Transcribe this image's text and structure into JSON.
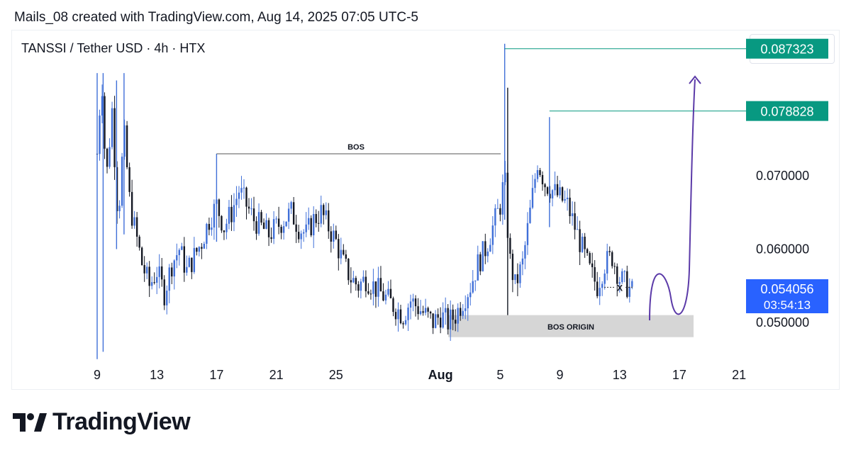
{
  "header": {
    "text": "Mails_08 created with TradingView.com, Aug 14, 2025 07:05 UTC-5"
  },
  "symbol": {
    "text": "TANSSI / Tether USD · 4h · HTX"
  },
  "currency": {
    "label": "USDT"
  },
  "brand": {
    "name": "TradingView"
  },
  "colors": {
    "up": "#3f6fd8",
    "down": "#131722",
    "accent": "#089981",
    "last": "#2962ff",
    "projection": "#5b3aa8"
  },
  "chart_data": {
    "type": "candlestick",
    "title": "TANSSI / Tether USD · 4h · HTX",
    "x_ticks": [
      "9",
      "13",
      "17",
      "21",
      "25",
      "Aug",
      "5",
      "9",
      "13",
      "17",
      "21"
    ],
    "y_ticks": [
      "0.070000",
      "0.060000",
      "0.050000"
    ],
    "ylim": [
      0.044,
      0.092
    ],
    "levels": [
      {
        "label": "0.087323",
        "value": 0.087323
      },
      {
        "label": "0.078828",
        "value": 0.078828
      }
    ],
    "last_price": {
      "label": "0.054056",
      "countdown": "03:54:13",
      "value": 0.054056
    },
    "annotations": {
      "bos": "BOS",
      "bos_origin": "BOS ORIGIN",
      "x_mark": "X"
    },
    "price_path_days": [
      [
        9.0,
        0.073
      ],
      [
        9.3,
        0.084
      ],
      [
        9.6,
        0.069
      ],
      [
        10.0,
        0.079
      ],
      [
        10.4,
        0.064
      ],
      [
        10.8,
        0.076
      ],
      [
        11.2,
        0.066
      ],
      [
        11.6,
        0.062
      ],
      [
        12.0,
        0.058
      ],
      [
        12.5,
        0.055
      ],
      [
        13.0,
        0.057
      ],
      [
        13.5,
        0.054
      ],
      [
        14.0,
        0.058
      ],
      [
        14.5,
        0.06
      ],
      [
        15.0,
        0.057
      ],
      [
        15.5,
        0.059
      ],
      [
        16.0,
        0.061
      ],
      [
        16.5,
        0.064
      ],
      [
        17.0,
        0.066
      ],
      [
        17.5,
        0.063
      ],
      [
        18.0,
        0.065
      ],
      [
        18.5,
        0.068
      ],
      [
        19.0,
        0.066
      ],
      [
        19.5,
        0.064
      ],
      [
        20.0,
        0.063
      ],
      [
        20.5,
        0.062
      ],
      [
        21.0,
        0.063
      ],
      [
        21.5,
        0.064
      ],
      [
        22.0,
        0.065
      ],
      [
        22.5,
        0.063
      ],
      [
        23.0,
        0.062
      ],
      [
        23.5,
        0.064
      ],
      [
        24.0,
        0.065
      ],
      [
        24.5,
        0.063
      ],
      [
        25.0,
        0.061
      ],
      [
        25.5,
        0.058
      ],
      [
        26.0,
        0.056
      ],
      [
        26.5,
        0.055
      ],
      [
        27.0,
        0.056
      ],
      [
        27.5,
        0.055
      ],
      [
        28.0,
        0.054
      ],
      [
        28.5,
        0.053
      ],
      [
        29.0,
        0.052
      ],
      [
        29.5,
        0.051
      ],
      [
        30.0,
        0.053
      ],
      [
        30.5,
        0.052
      ],
      [
        31.0,
        0.051
      ],
      [
        31.5,
        0.05
      ],
      [
        32.0,
        0.051
      ],
      [
        32.5,
        0.05
      ],
      [
        33.0,
        0.051
      ],
      [
        33.5,
        0.053
      ],
      [
        34.0,
        0.055
      ],
      [
        34.5,
        0.058
      ],
      [
        35.0,
        0.06
      ],
      [
        35.5,
        0.063
      ],
      [
        36.0,
        0.066
      ],
      [
        36.3,
        0.07
      ],
      [
        36.6,
        0.059
      ],
      [
        37.0,
        0.055
      ],
      [
        37.5,
        0.058
      ],
      [
        38.0,
        0.065
      ],
      [
        38.5,
        0.072
      ],
      [
        39.0,
        0.069
      ],
      [
        39.5,
        0.068
      ],
      [
        40.0,
        0.067
      ],
      [
        40.5,
        0.066
      ],
      [
        41.0,
        0.063
      ],
      [
        41.5,
        0.06
      ],
      [
        42.0,
        0.057
      ],
      [
        42.5,
        0.055
      ],
      [
        43.0,
        0.058
      ],
      [
        43.5,
        0.059
      ],
      [
        44.0,
        0.056
      ],
      [
        44.5,
        0.055
      ],
      [
        44.9,
        0.054
      ]
    ]
  }
}
